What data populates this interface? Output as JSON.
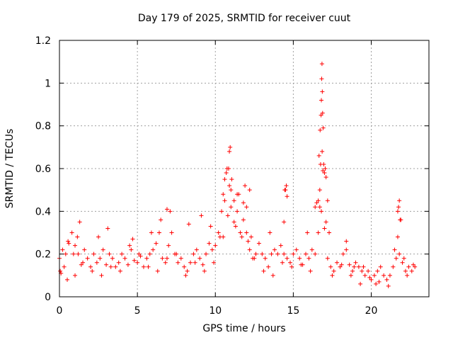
{
  "chart_data": {
    "type": "scatter",
    "title": "Day 179 of 2025, SRMTID for receiver cuut",
    "xlabel": "GPS time / hours",
    "ylabel": "SRMTID / TECUs",
    "xlim": [
      0,
      23.7
    ],
    "ylim": [
      0,
      1.2
    ],
    "xticks": [
      0,
      5,
      10,
      15,
      20
    ],
    "xtick_labels": [
      "0",
      "5",
      "10",
      "15",
      "20"
    ],
    "yticks": [
      0,
      0.2,
      0.4,
      0.6,
      0.8,
      1,
      1.2
    ],
    "ytick_labels": [
      "0",
      "0.2",
      "0.4",
      "0.6",
      "0.8",
      "1",
      "1.2"
    ],
    "grid": true,
    "marker": "plus",
    "color": "#ff0000",
    "series": [
      {
        "name": "SRMTID",
        "x": [
          0.0,
          0.2,
          0.4,
          0.6,
          0.8,
          1.0,
          1.2,
          1.4,
          1.6,
          1.8,
          2.0,
          2.2,
          2.4,
          2.6,
          2.8,
          3.0,
          3.2,
          3.4,
          3.6,
          3.8,
          4.0,
          4.2,
          4.4,
          4.6,
          4.8,
          5.0,
          5.2,
          5.4,
          5.6,
          5.8,
          6.0,
          6.2,
          6.4,
          6.6,
          6.8,
          7.0,
          7.2,
          7.4,
          7.6,
          7.8,
          8.0,
          8.2,
          8.4,
          8.6,
          8.8,
          9.0,
          9.2,
          9.4,
          9.6,
          9.8,
          10.0,
          10.2,
          10.4,
          10.6,
          10.8,
          11.0,
          11.2,
          11.4,
          11.6,
          11.8,
          12.0,
          12.2,
          12.4,
          12.6,
          12.8,
          13.0,
          13.2,
          13.4,
          13.6,
          13.8,
          14.0,
          14.2,
          14.4,
          14.6,
          14.8,
          15.0,
          15.2,
          15.4,
          15.6,
          15.8,
          16.0,
          16.2,
          16.4,
          16.6,
          16.8,
          17.0,
          17.2,
          17.4,
          17.6,
          17.8,
          18.0,
          18.2,
          18.4,
          18.6,
          18.8,
          19.0,
          19.2,
          19.4,
          19.6,
          19.8,
          20.0,
          20.2,
          20.4,
          20.6,
          20.8,
          21.0,
          21.2,
          21.4,
          21.6,
          21.8,
          22.0,
          22.2,
          22.4,
          22.6,
          22.8,
          0.05,
          0.3,
          0.55,
          0.9,
          1.15,
          1.5,
          2.1,
          2.7,
          3.3,
          3.9,
          4.5,
          5.1,
          5.7,
          6.3,
          6.9,
          7.5,
          8.1,
          8.7,
          9.3,
          9.9,
          10.5,
          10.9,
          11.3,
          11.7,
          12.1,
          12.5,
          13.1,
          13.7,
          14.3,
          14.9,
          15.5,
          16.1,
          16.7,
          17.1,
          17.5,
          18.1,
          18.7,
          19.3,
          19.9,
          20.5,
          21.1,
          21.7,
          22.3,
          22.7,
          0.1,
          0.5,
          1.0,
          1.3,
          2.5,
          3.1,
          4.7,
          5.9,
          6.5,
          6.9,
          7.1,
          8.3,
          9.1,
          9.7,
          10.3,
          10.6,
          10.75,
          11.0,
          11.4,
          11.9,
          12.3,
          13.5,
          14.45,
          14.55,
          15.9,
          16.4,
          16.6,
          16.75,
          16.85,
          16.9,
          17.0,
          17.3,
          18.4,
          18.9,
          19.5,
          20.3,
          21.5,
          21.75,
          21.85,
          22.1,
          10.5,
          10.7,
          10.85,
          10.9,
          10.95,
          11.05,
          11.2,
          11.5,
          11.8,
          12.0,
          12.2,
          14.4,
          14.5,
          14.6,
          16.5,
          16.65,
          16.7,
          16.72,
          16.78,
          16.8,
          16.82,
          16.84,
          16.86,
          16.88,
          16.92,
          16.95,
          17.05,
          17.1,
          17.2,
          21.7,
          21.8,
          21.9
        ],
        "y": [
          0.18,
          0.22,
          0.2,
          0.25,
          0.3,
          0.24,
          0.2,
          0.15,
          0.22,
          0.18,
          0.14,
          0.2,
          0.16,
          0.18,
          0.22,
          0.15,
          0.2,
          0.18,
          0.14,
          0.16,
          0.2,
          0.18,
          0.15,
          0.22,
          0.17,
          0.16,
          0.19,
          0.14,
          0.18,
          0.2,
          0.22,
          0.25,
          0.3,
          0.18,
          0.16,
          0.24,
          0.3,
          0.2,
          0.16,
          0.18,
          0.14,
          0.12,
          0.16,
          0.2,
          0.22,
          0.18,
          0.15,
          0.2,
          0.25,
          0.22,
          0.24,
          0.3,
          0.4,
          0.45,
          0.38,
          0.42,
          0.35,
          0.4,
          0.3,
          0.36,
          0.3,
          0.22,
          0.18,
          0.2,
          0.25,
          0.2,
          0.18,
          0.14,
          0.2,
          0.22,
          0.2,
          0.24,
          0.2,
          0.18,
          0.16,
          0.2,
          0.22,
          0.18,
          0.15,
          0.2,
          0.18,
          0.22,
          0.2,
          0.3,
          0.4,
          0.32,
          0.18,
          0.14,
          0.12,
          0.16,
          0.14,
          0.2,
          0.22,
          0.15,
          0.12,
          0.16,
          0.14,
          0.12,
          0.1,
          0.12,
          0.08,
          0.1,
          0.12,
          0.14,
          0.1,
          0.08,
          0.1,
          0.14,
          0.18,
          0.2,
          0.16,
          0.12,
          0.14,
          0.12,
          0.14,
          0.12,
          0.14,
          0.26,
          0.2,
          0.28,
          0.16,
          0.12,
          0.1,
          0.14,
          0.12,
          0.24,
          0.2,
          0.14,
          0.12,
          0.18,
          0.2,
          0.1,
          0.16,
          0.12,
          0.16,
          0.28,
          0.52,
          0.33,
          0.28,
          0.26,
          0.18,
          0.12,
          0.1,
          0.16,
          0.14,
          0.15,
          0.12,
          0.5,
          0.35,
          0.1,
          0.15,
          0.1,
          0.06,
          0.09,
          0.07,
          0.05,
          0.28,
          0.1,
          0.15,
          0.11,
          0.08,
          0.1,
          0.35,
          0.28,
          0.32,
          0.27,
          0.3,
          0.36,
          0.41,
          0.4,
          0.34,
          0.38,
          0.33,
          0.28,
          0.55,
          0.6,
          0.5,
          0.48,
          0.52,
          0.28,
          0.3,
          0.5,
          0.52,
          0.3,
          0.42,
          0.45,
          0.62,
          0.68,
          0.59,
          0.58,
          0.3,
          0.26,
          0.14,
          0.14,
          0.06,
          0.22,
          0.42,
          0.36,
          0.18,
          0.48,
          0.58,
          0.6,
          0.68,
          0.7,
          0.55,
          0.45,
          0.48,
          0.44,
          0.42,
          0.5,
          0.35,
          0.5,
          0.47,
          0.44,
          0.66,
          0.42,
          0.78,
          0.85,
          0.92,
          1.02,
          1.09,
          0.96,
          0.86,
          0.79,
          0.62,
          0.6,
          0.56,
          0.45,
          0.4,
          0.45,
          0.36
        ]
      }
    ]
  }
}
